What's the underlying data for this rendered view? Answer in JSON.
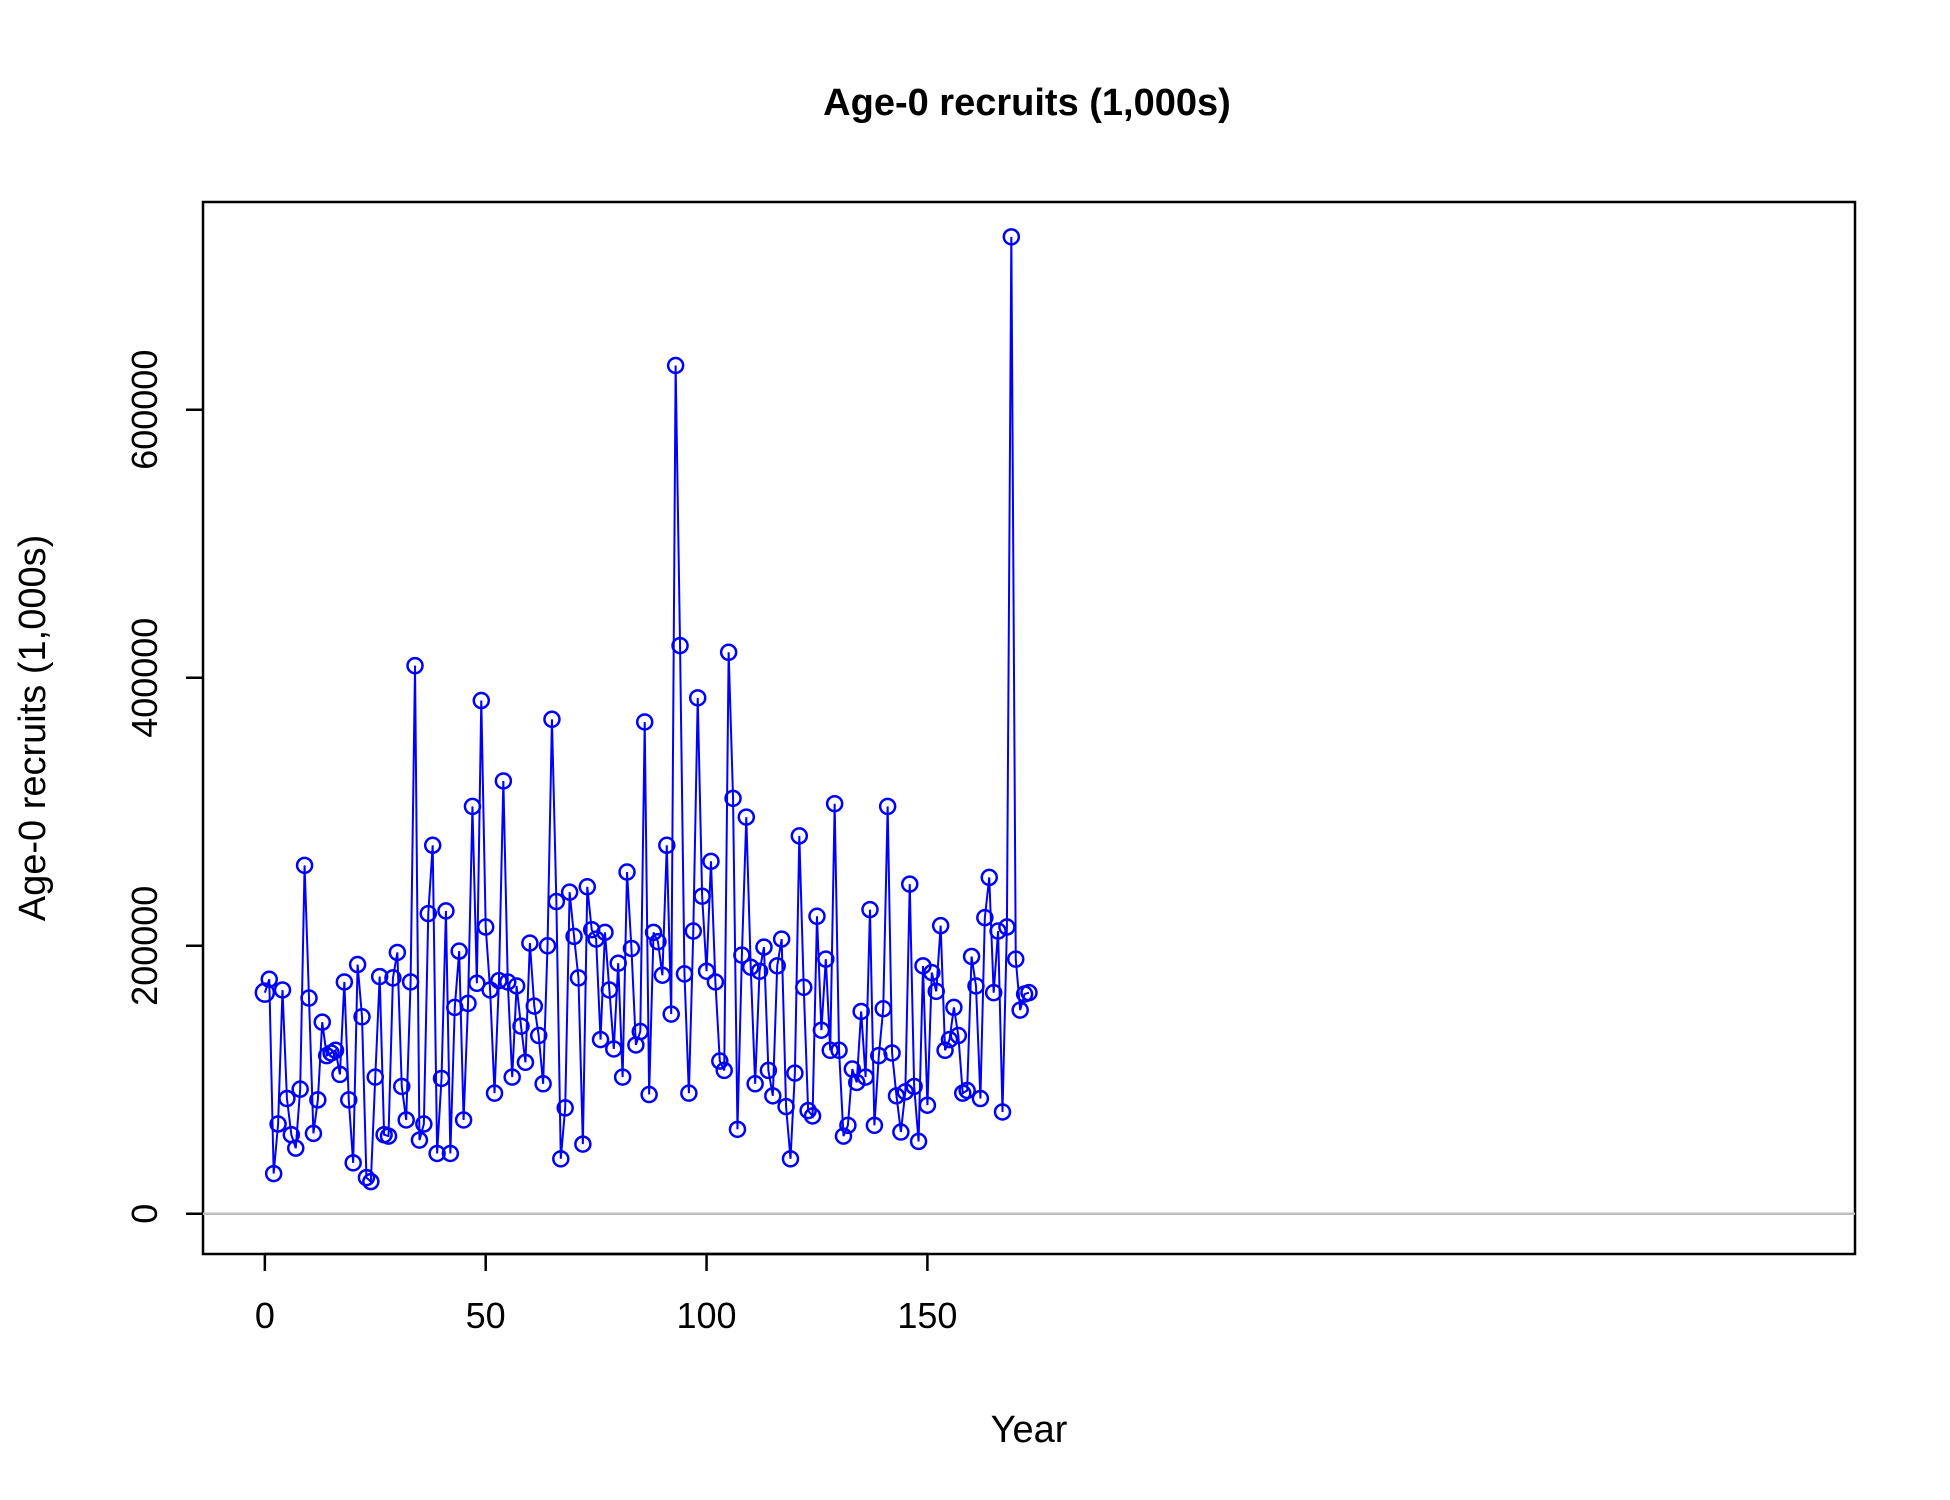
{
  "chart_data": {
    "type": "line",
    "title": "Age-0 recruits (1,000s)",
    "xlabel": "Year",
    "ylabel": "Age-0 recruits (1,000s)",
    "xlim": [
      -14,
      360
    ],
    "ylim": [
      -30000,
      755000
    ],
    "xticks": [
      0,
      50,
      100,
      150
    ],
    "yticks": [
      0,
      200000,
      400000,
      600000
    ],
    "xtick_labels": [
      "0",
      "50",
      "100",
      "150"
    ],
    "ytick_labels": [
      "0",
      "200000",
      "400000",
      "600000"
    ],
    "baseline": 0,
    "color": "#0000ff",
    "baseline_color": "#bebebe",
    "first_point_filled": true,
    "x": [
      0,
      1,
      2,
      3,
      4,
      5,
      6,
      7,
      8,
      9,
      10,
      11,
      12,
      13,
      14,
      15,
      16,
      17,
      18,
      19,
      20,
      21,
      22,
      23,
      24,
      25,
      26,
      27,
      28,
      29,
      30,
      31,
      32,
      33,
      34,
      35,
      36,
      37,
      38,
      39,
      40,
      41,
      42,
      43,
      44,
      45,
      46,
      47,
      48,
      49,
      50,
      51,
      52,
      53,
      54,
      55,
      56,
      57,
      58,
      59,
      60,
      61,
      62,
      63,
      64,
      65,
      66,
      67,
      68,
      69,
      70,
      71,
      72,
      73,
      74,
      75,
      76,
      77,
      78,
      79,
      80,
      81,
      82,
      83,
      84,
      85,
      86,
      87,
      88,
      89,
      90,
      91,
      92,
      93,
      94,
      95,
      96,
      97,
      98,
      99,
      100,
      101,
      102,
      103,
      104,
      105,
      106,
      107,
      108,
      109,
      110,
      111,
      112,
      113,
      114,
      115,
      116,
      117,
      118,
      119,
      120,
      121,
      122,
      123,
      124,
      125,
      126,
      127,
      128,
      129,
      130,
      131,
      132,
      133,
      134,
      135,
      136,
      137,
      138,
      139,
      140,
      141,
      142,
      143,
      144,
      145,
      146,
      147,
      148,
      149,
      150,
      151,
      152,
      153,
      154,
      155,
      156,
      157,
      158,
      159,
      160,
      161,
      162,
      163,
      164,
      165,
      166,
      167,
      168,
      169,
      170,
      171,
      172,
      173
    ],
    "values": [
      165000,
      175000,
      30000,
      67000,
      167000,
      86000,
      59000,
      49000,
      93000,
      260000,
      161000,
      60000,
      85000,
      143000,
      118000,
      120000,
      122000,
      104000,
      173000,
      85000,
      38000,
      186000,
      147000,
      27000,
      24000,
      102000,
      177000,
      59000,
      58000,
      176000,
      195000,
      95000,
      70000,
      173000,
      409000,
      55000,
      67000,
      224000,
      275000,
      45000,
      101000,
      226000,
      45000,
      154000,
      196000,
      70000,
      157000,
      304000,
      172000,
      383000,
      214000,
      167000,
      90000,
      174000,
      323000,
      173000,
      102000,
      170000,
      140000,
      113000,
      202000,
      155000,
      133000,
      97000,
      200000,
      369000,
      233000,
      41000,
      79000,
      240000,
      207000,
      176000,
      52000,
      244000,
      212000,
      205000,
      130000,
      210000,
      167000,
      123000,
      187000,
      102000,
      255000,
      198000,
      126000,
      136000,
      367000,
      89000,
      210000,
      203000,
      178000,
      275000,
      149000,
      633000,
      424000,
      179000,
      90000,
      211000,
      385000,
      237000,
      181000,
      263000,
      173000,
      114000,
      107000,
      419000,
      310000,
      63000,
      193000,
      296000,
      184000,
      97000,
      181000,
      199000,
      107000,
      88000,
      185000,
      205000,
      80000,
      41000,
      105000,
      282000,
      169000,
      77000,
      73000,
      222000,
      137000,
      190000,
      122000,
      306000,
      122000,
      58000,
      66000,
      108000,
      98000,
      151000,
      102000,
      227000,
      66000,
      118000,
      153000,
      304000,
      120000,
      88000,
      61000,
      91000,
      246000,
      95000,
      54000,
      185000,
      81000,
      180000,
      166000,
      215000,
      122000,
      130000,
      154000,
      133000,
      90000,
      92000,
      192000,
      170000,
      86000,
      221000,
      251000,
      165000,
      211000,
      76000,
      214000,
      729000,
      190000,
      152000,
      164000,
      165000
    ]
  }
}
